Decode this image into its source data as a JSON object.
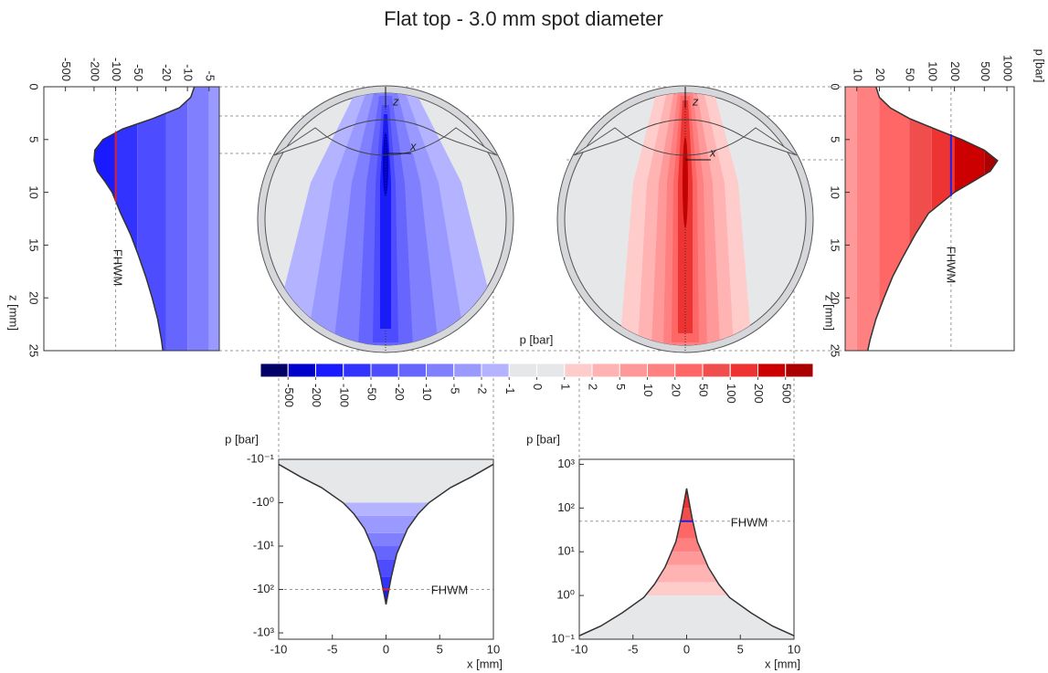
{
  "title": "Flat top - 3.0 mm spot diameter",
  "eyes": [
    {
      "z_label": "z",
      "x_label": "x"
    },
    {
      "z_label": "z",
      "x_label": "x"
    }
  ],
  "chart_data": [
    {
      "type": "area",
      "orientation": "vertical",
      "log_scale": true,
      "x_label": "z [mm]",
      "x": [
        0,
        1,
        2,
        3,
        4,
        5,
        6,
        7,
        8,
        9,
        10,
        12,
        14,
        16,
        18,
        20,
        22,
        24,
        25
      ],
      "values": [
        -8,
        -9,
        -13,
        -30,
        -80,
        -150,
        -195,
        -200,
        -180,
        -140,
        -112,
        -85,
        -62,
        -48,
        -38,
        -31,
        -26,
        -23,
        -22
      ],
      "xlim": [
        0,
        25
      ],
      "xticks": [
        0,
        5,
        10,
        15,
        20,
        25
      ],
      "ylim": [
        -1000,
        -3.6
      ],
      "yticks": [
        -500,
        -200,
        -100,
        -50,
        -20,
        -10,
        -5
      ],
      "line_color": "#333333",
      "fhwm": {
        "label": "FHWM",
        "value": -100,
        "color": "#e02020"
      }
    },
    {
      "type": "area",
      "orientation": "vertical",
      "log_scale": true,
      "x_label": "z [mm]",
      "y_label": "p [bar]",
      "x": [
        0,
        1,
        2,
        3,
        4,
        5,
        6,
        7,
        8,
        9,
        10,
        12,
        14,
        16,
        18,
        20,
        22,
        24,
        25
      ],
      "values": [
        18,
        20,
        28,
        50,
        110,
        250,
        500,
        750,
        600,
        350,
        200,
        90,
        60,
        42,
        30,
        23,
        18,
        15,
        14
      ],
      "xlim": [
        0,
        25
      ],
      "xticks": [
        0,
        5,
        10,
        15,
        20,
        25
      ],
      "ylim": [
        7,
        1250
      ],
      "yticks": [
        10,
        20,
        50,
        100,
        200,
        500,
        1000
      ],
      "line_color": "#333333",
      "fhwm": {
        "label": "FHWM",
        "value": 180,
        "color": "#2020e0"
      }
    },
    {
      "type": "colorbar",
      "title": "p [bar]",
      "ticks": [
        -500,
        -200,
        -100,
        -50,
        -20,
        -10,
        -5,
        -2,
        -1,
        0,
        1,
        2,
        5,
        10,
        20,
        50,
        100,
        200,
        500
      ],
      "colors": [
        "#000066",
        "#0000cc",
        "#1a1aff",
        "#3333ff",
        "#4d4dff",
        "#6666ff",
        "#8080ff",
        "#9999ff",
        "#b3b3ff",
        "#e6e7e9",
        "#e6e7e9",
        "#ffcccc",
        "#ffb3b3",
        "#ff9999",
        "#ff8080",
        "#ff6666",
        "#f04d4d",
        "#ee3333",
        "#cc0000",
        "#aa0000"
      ]
    },
    {
      "type": "area",
      "log_scale": true,
      "x_label": "x [mm]",
      "y_label": "p [bar]",
      "x": [
        -10,
        -8,
        -6,
        -4,
        -3,
        -2,
        -1,
        -0.5,
        0,
        0.5,
        1,
        2,
        3,
        4,
        6,
        8,
        10
      ],
      "values": [
        -0.13,
        -0.25,
        -0.45,
        -1.0,
        -1.8,
        -4,
        -15,
        -50,
        -220,
        -50,
        -15,
        -4,
        -1.8,
        -1.0,
        -0.45,
        -0.25,
        -0.13
      ],
      "xlim": [
        -10,
        10
      ],
      "xticks": [
        -10,
        -5,
        0,
        5,
        10
      ],
      "ylim": [
        -1400,
        -0.1
      ],
      "yticks": [
        {
          "value": -0.1,
          "label": "-10⁻¹"
        },
        {
          "value": -1,
          "label": "-10⁰"
        },
        {
          "value": -10,
          "label": "-10¹"
        },
        {
          "value": -100,
          "label": "-10²"
        },
        {
          "value": -1000,
          "label": "-10³"
        }
      ],
      "line_color": "#333333",
      "fhwm": {
        "label": "FHWM",
        "value": -100,
        "color": "#e02020"
      }
    },
    {
      "type": "area",
      "log_scale": true,
      "x_label": "x [mm]",
      "y_label": "p [bar]",
      "x": [
        -10,
        -8,
        -6,
        -4,
        -3,
        -2,
        -1,
        -0.5,
        0,
        0.5,
        1,
        2,
        3,
        4,
        6,
        8,
        10
      ],
      "values": [
        0.12,
        0.2,
        0.4,
        0.9,
        1.8,
        4.5,
        17,
        60,
        280,
        60,
        17,
        4.5,
        1.8,
        0.9,
        0.4,
        0.2,
        0.12
      ],
      "xlim": [
        -10,
        10
      ],
      "xticks": [
        -10,
        -5,
        0,
        5,
        10
      ],
      "ylim": [
        0.1,
        1300
      ],
      "yticks": [
        {
          "value": 0.1,
          "label": "10⁻¹"
        },
        {
          "value": 1,
          "label": "10⁰"
        },
        {
          "value": 10,
          "label": "10¹"
        },
        {
          "value": 100,
          "label": "10²"
        },
        {
          "value": 1000,
          "label": "10³"
        }
      ],
      "line_color": "#333333",
      "fhwm": {
        "label": "FHWM",
        "value": 50,
        "color": "#2020e0"
      }
    }
  ]
}
